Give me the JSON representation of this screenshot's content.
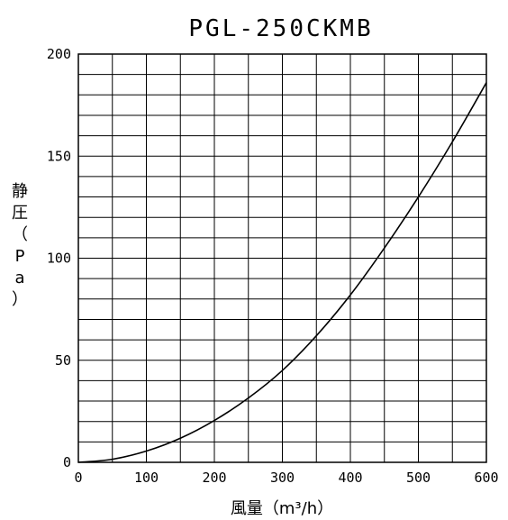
{
  "chart_data": {
    "type": "line",
    "title": "PGL-250CKMB",
    "xlabel": "風量（m³/h）",
    "ylabel": "静圧（Pa）",
    "xlim": [
      0,
      600
    ],
    "ylim": [
      0,
      200
    ],
    "x_ticks": [
      "0",
      "100",
      "200",
      "300",
      "400",
      "500",
      "600"
    ],
    "y_ticks": [
      "0",
      "50",
      "100",
      "150",
      "200"
    ],
    "grid": true,
    "series": [
      {
        "color": "#000000",
        "x": [
          0,
          50,
          100,
          150,
          200,
          250,
          300,
          350,
          400,
          450,
          500,
          550,
          600
        ],
        "y": [
          0,
          1.5,
          5.5,
          11.8,
          20.5,
          31.5,
          45,
          62,
          82,
          105,
          130,
          157,
          186
        ]
      }
    ]
  }
}
